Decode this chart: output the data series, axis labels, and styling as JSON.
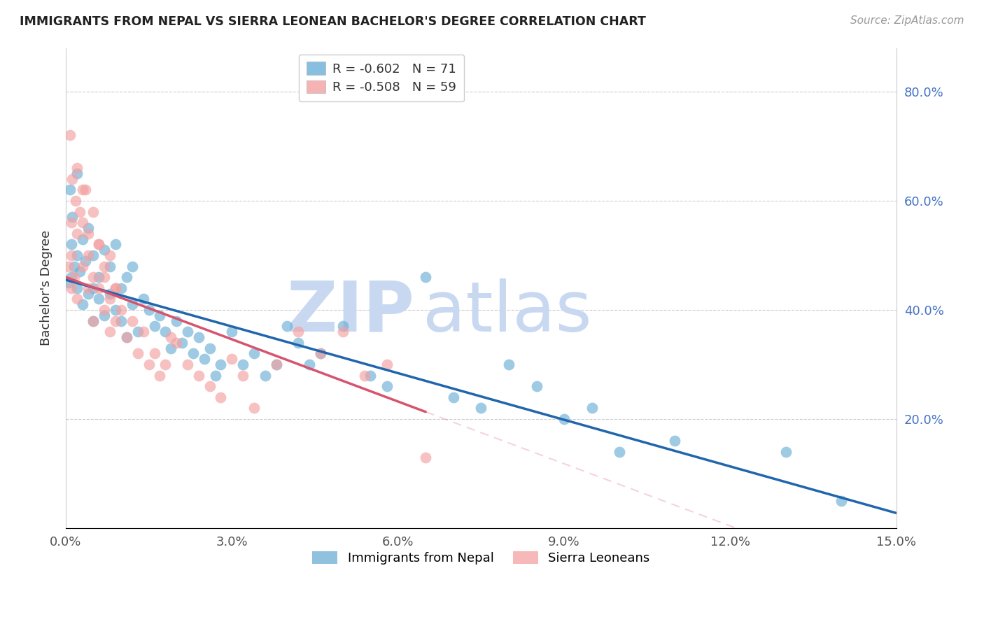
{
  "title": "IMMIGRANTS FROM NEPAL VS SIERRA LEONEAN BACHELOR'S DEGREE CORRELATION CHART",
  "source": "Source: ZipAtlas.com",
  "ylabel": "Bachelor's Degree",
  "xlim": [
    0.0,
    0.15
  ],
  "ylim": [
    0.0,
    0.88
  ],
  "right_yticks": [
    0.0,
    0.2,
    0.4,
    0.6,
    0.8
  ],
  "right_yticklabels": [
    "",
    "20.0%",
    "40.0%",
    "60.0%",
    "80.0%"
  ],
  "xticks": [
    0.0,
    0.03,
    0.06,
    0.09,
    0.12,
    0.15
  ],
  "xticklabels": [
    "0.0%",
    "3.0%",
    "6.0%",
    "9.0%",
    "12.0%",
    "15.0%"
  ],
  "legend_blue_r": "R = -0.602",
  "legend_blue_n": "N = 71",
  "legend_pink_r": "R = -0.508",
  "legend_pink_n": "N = 59",
  "legend_blue_label": "Immigrants from Nepal",
  "legend_pink_label": "Sierra Leoneans",
  "blue_color": "#6baed6",
  "pink_color": "#f4a0a0",
  "blue_line_color": "#2166ac",
  "pink_line_color": "#d6546e",
  "watermark": "ZIPatlas",
  "watermark_color": "#c8d8f0",
  "blue_intercept": 0.455,
  "blue_slope": -2.85,
  "pink_intercept": 0.46,
  "pink_slope": -3.8,
  "blue_scatter_x": [
    0.0005,
    0.001,
    0.001,
    0.0015,
    0.002,
    0.002,
    0.0025,
    0.003,
    0.003,
    0.0035,
    0.004,
    0.004,
    0.005,
    0.005,
    0.005,
    0.006,
    0.006,
    0.007,
    0.007,
    0.008,
    0.008,
    0.009,
    0.009,
    0.01,
    0.01,
    0.011,
    0.011,
    0.012,
    0.012,
    0.013,
    0.014,
    0.015,
    0.016,
    0.017,
    0.018,
    0.019,
    0.02,
    0.021,
    0.022,
    0.023,
    0.024,
    0.025,
    0.026,
    0.027,
    0.028,
    0.03,
    0.032,
    0.034,
    0.036,
    0.038,
    0.04,
    0.042,
    0.044,
    0.046,
    0.05,
    0.055,
    0.058,
    0.065,
    0.07,
    0.075,
    0.08,
    0.085,
    0.09,
    0.095,
    0.1,
    0.11,
    0.13,
    0.14,
    0.0008,
    0.0012,
    0.002
  ],
  "blue_scatter_y": [
    0.45,
    0.46,
    0.52,
    0.48,
    0.44,
    0.5,
    0.47,
    0.53,
    0.41,
    0.49,
    0.43,
    0.55,
    0.44,
    0.5,
    0.38,
    0.46,
    0.42,
    0.51,
    0.39,
    0.48,
    0.43,
    0.4,
    0.52,
    0.44,
    0.38,
    0.46,
    0.35,
    0.41,
    0.48,
    0.36,
    0.42,
    0.4,
    0.37,
    0.39,
    0.36,
    0.33,
    0.38,
    0.34,
    0.36,
    0.32,
    0.35,
    0.31,
    0.33,
    0.28,
    0.3,
    0.36,
    0.3,
    0.32,
    0.28,
    0.3,
    0.37,
    0.34,
    0.3,
    0.32,
    0.37,
    0.28,
    0.26,
    0.46,
    0.24,
    0.22,
    0.3,
    0.26,
    0.2,
    0.22,
    0.14,
    0.16,
    0.14,
    0.05,
    0.62,
    0.57,
    0.65
  ],
  "pink_scatter_x": [
    0.0005,
    0.001,
    0.001,
    0.0015,
    0.002,
    0.002,
    0.003,
    0.003,
    0.004,
    0.004,
    0.005,
    0.005,
    0.006,
    0.006,
    0.007,
    0.007,
    0.008,
    0.008,
    0.009,
    0.009,
    0.01,
    0.011,
    0.012,
    0.013,
    0.014,
    0.015,
    0.016,
    0.017,
    0.018,
    0.019,
    0.02,
    0.022,
    0.024,
    0.026,
    0.028,
    0.03,
    0.032,
    0.034,
    0.038,
    0.042,
    0.046,
    0.05,
    0.054,
    0.058,
    0.065,
    0.0008,
    0.0012,
    0.0018,
    0.0025,
    0.0035,
    0.001,
    0.002,
    0.003,
    0.004,
    0.005,
    0.006,
    0.007,
    0.008,
    0.009
  ],
  "pink_scatter_y": [
    0.48,
    0.5,
    0.44,
    0.46,
    0.54,
    0.42,
    0.48,
    0.56,
    0.44,
    0.5,
    0.46,
    0.38,
    0.44,
    0.52,
    0.4,
    0.46,
    0.42,
    0.36,
    0.44,
    0.38,
    0.4,
    0.35,
    0.38,
    0.32,
    0.36,
    0.3,
    0.32,
    0.28,
    0.3,
    0.35,
    0.34,
    0.3,
    0.28,
    0.26,
    0.24,
    0.31,
    0.28,
    0.22,
    0.3,
    0.36,
    0.32,
    0.36,
    0.28,
    0.3,
    0.13,
    0.72,
    0.64,
    0.6,
    0.58,
    0.62,
    0.56,
    0.66,
    0.62,
    0.54,
    0.58,
    0.52,
    0.48,
    0.5,
    0.44
  ]
}
